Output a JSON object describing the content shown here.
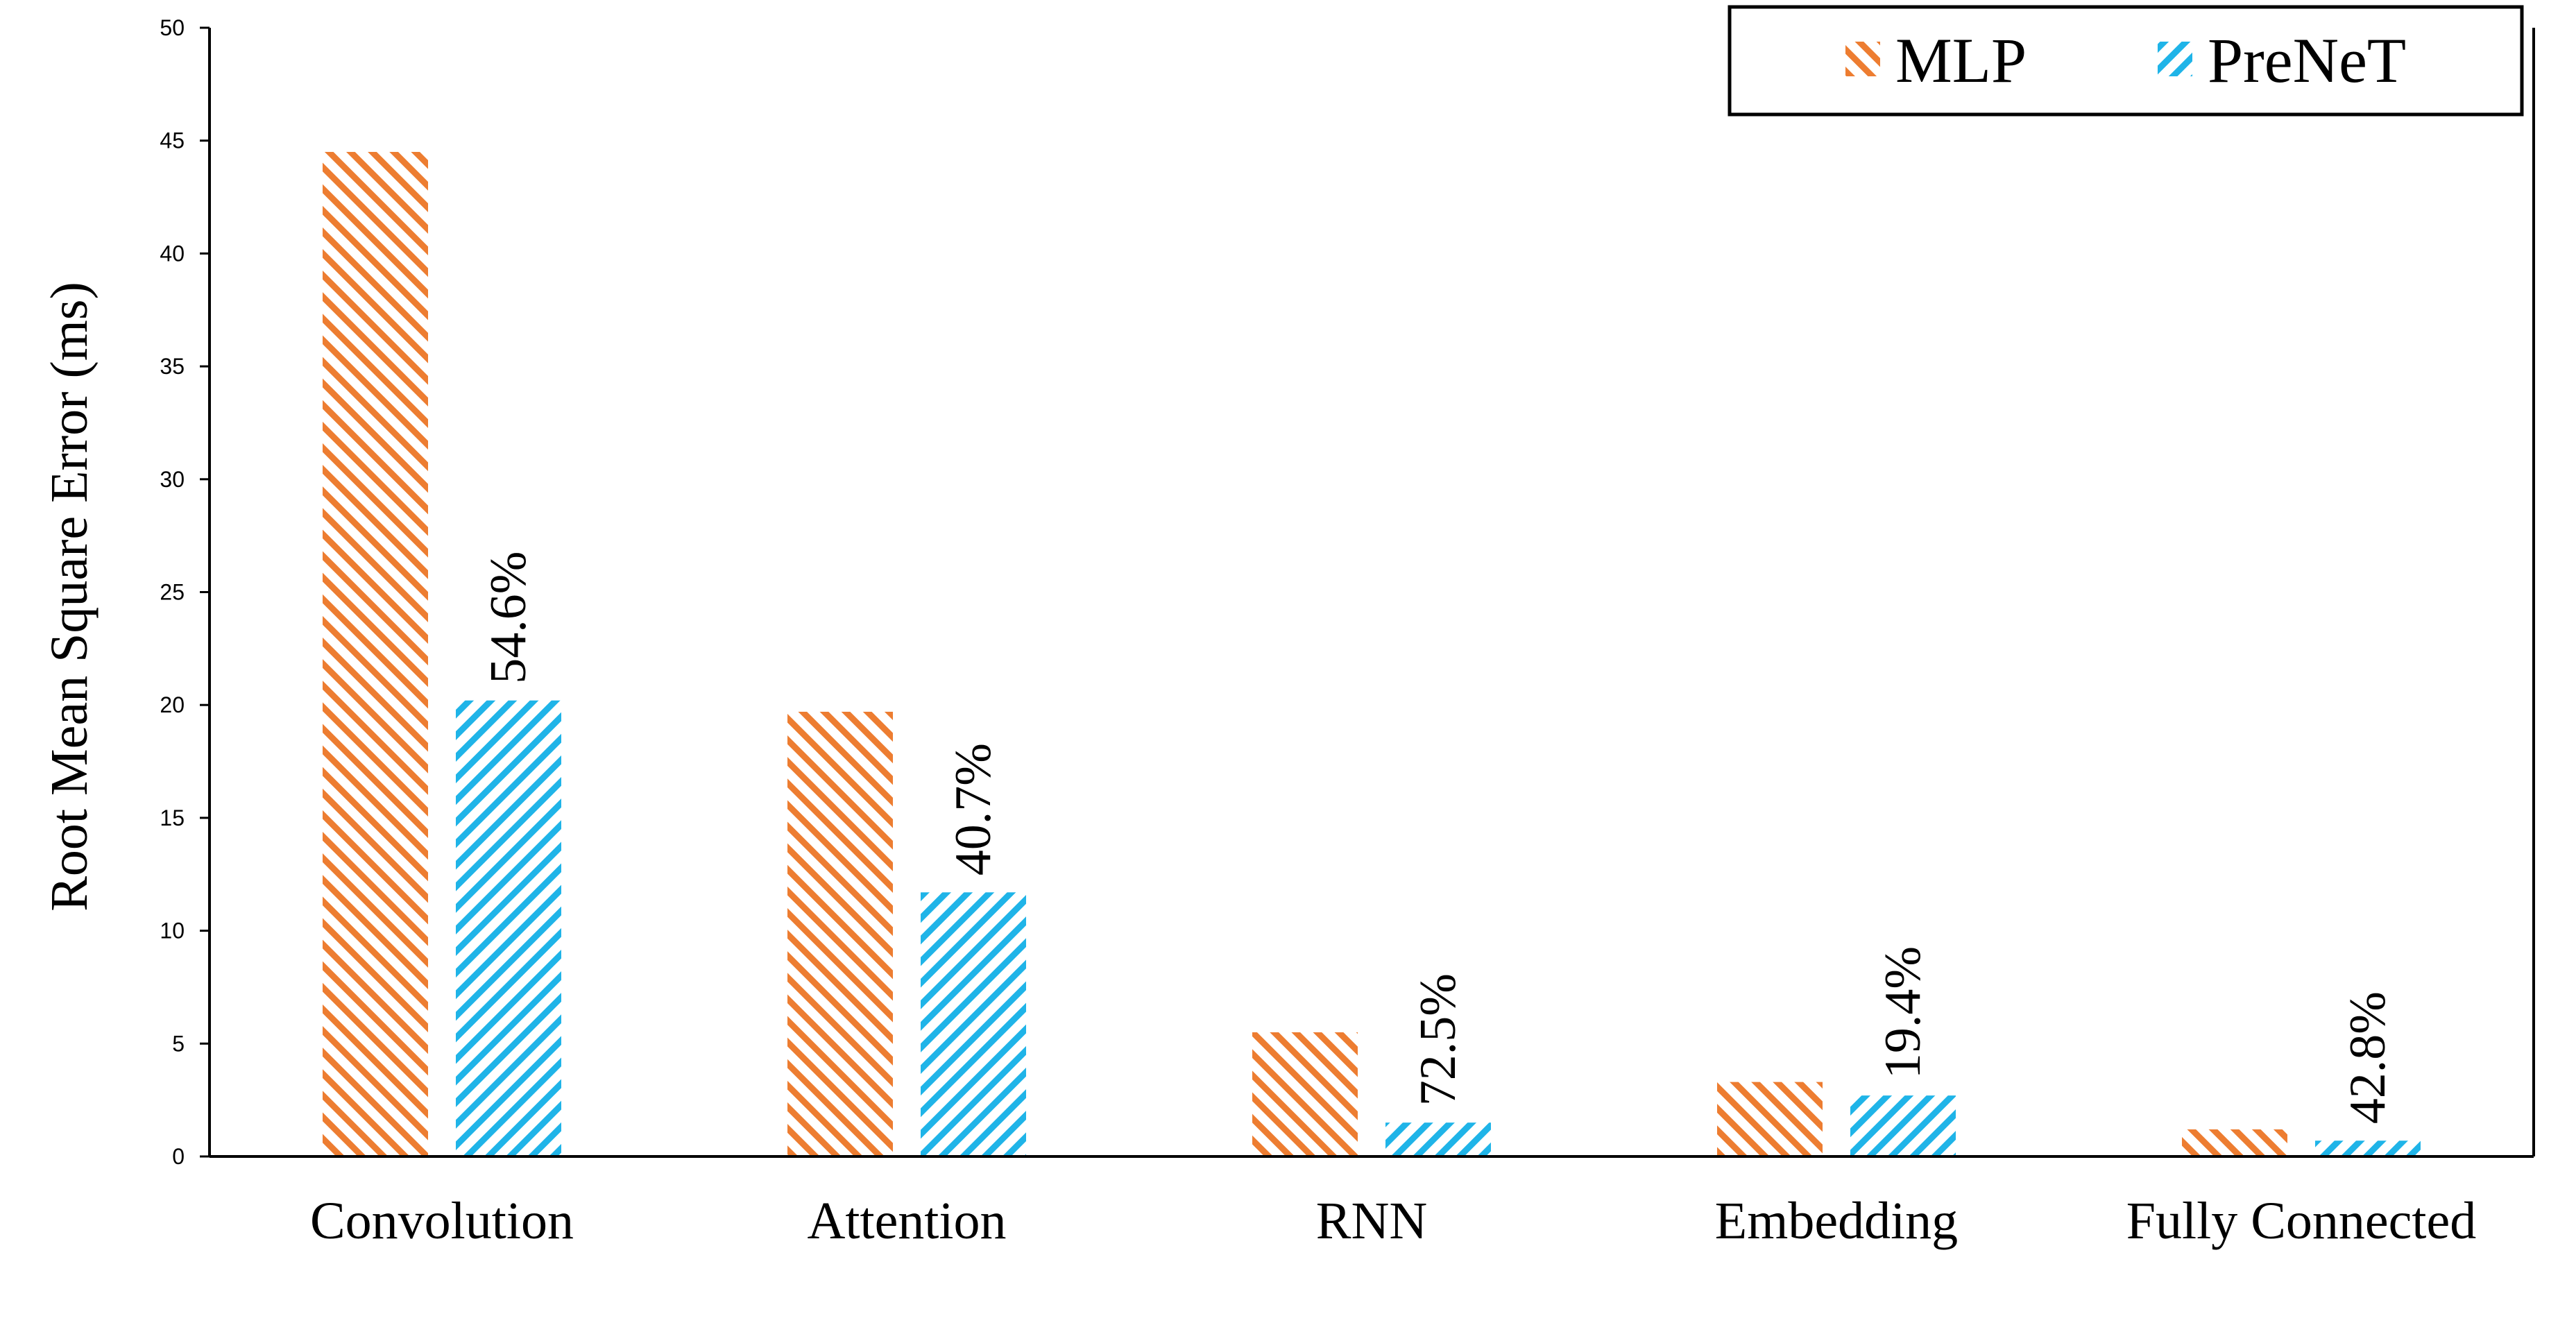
{
  "chart_data": {
    "type": "bar",
    "ylabel": "Root Mean Square Error (ms)",
    "ylim": [
      0,
      50
    ],
    "yticks": [
      0,
      5,
      10,
      15,
      20,
      25,
      30,
      35,
      40,
      45,
      50
    ],
    "categories": [
      "Convolution",
      "Attention",
      "RNN",
      "Embedding",
      "Fully Connected"
    ],
    "series": [
      {
        "name": "MLP",
        "values": [
          44.5,
          19.7,
          5.5,
          3.3,
          1.2
        ],
        "color": "#ED7D31"
      },
      {
        "name": "PreNeT",
        "values": [
          20.2,
          11.7,
          1.5,
          2.7,
          0.7
        ],
        "color": "#1FB4E8"
      }
    ],
    "annotations": [
      "54.6%",
      "40.7%",
      "72.5%",
      "19.4%",
      "42.8%"
    ],
    "grid": false,
    "legend_position": "top-right",
    "bar_pattern": "diagonal-hatch"
  }
}
